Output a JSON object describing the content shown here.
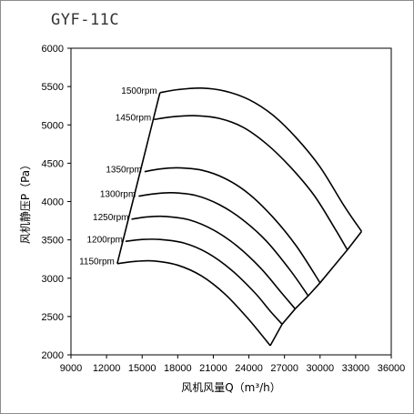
{
  "chart_data": {
    "type": "line",
    "title": "GYF-11C",
    "xlabel": "风机风量Q（m³/h）",
    "ylabel": "风机静压P（Pa）",
    "xlim": [
      9000,
      36000
    ],
    "ylim": [
      2000,
      6000
    ],
    "x_ticks": [
      "9000",
      "12000",
      "15000",
      "18000",
      "21000",
      "24000",
      "27000",
      "30000",
      "33000",
      "36000"
    ],
    "y_ticks": [
      "2000",
      "2500",
      "3000",
      "3500",
      "4000",
      "4500",
      "5000",
      "5500",
      "6000"
    ],
    "grid": false,
    "series": [
      {
        "name": "1500rpm",
        "x": [
          16500,
          18000,
          20000,
          22000,
          24000,
          26000,
          28000,
          30000,
          32000,
          33500
        ],
        "y": [
          5420,
          5460,
          5480,
          5440,
          5330,
          5130,
          4830,
          4450,
          3950,
          3610
        ]
      },
      {
        "name": "1450rpm",
        "x": [
          16000,
          17500,
          19500,
          21500,
          23500,
          25500,
          27500,
          29500,
          31200,
          32300
        ],
        "y": [
          5070,
          5105,
          5120,
          5085,
          4970,
          4750,
          4450,
          4080,
          3660,
          3370
        ]
      },
      {
        "name": "1350rpm",
        "x": [
          15200,
          16500,
          18000,
          20000,
          22000,
          24000,
          26000,
          28000,
          30000
        ],
        "y": [
          4390,
          4425,
          4440,
          4410,
          4300,
          4100,
          3800,
          3420,
          2940
        ]
      },
      {
        "name": "1300rpm",
        "x": [
          14700,
          16000,
          17500,
          19500,
          21500,
          23500,
          25500,
          27500,
          29000
        ],
        "y": [
          4070,
          4100,
          4115,
          4080,
          3960,
          3760,
          3480,
          3100,
          2770
        ]
      },
      {
        "name": "1250rpm",
        "x": [
          14100,
          15500,
          17000,
          19000,
          21000,
          23000,
          25000,
          26800,
          27900
        ],
        "y": [
          3770,
          3800,
          3805,
          3760,
          3630,
          3420,
          3130,
          2800,
          2600
        ]
      },
      {
        "name": "1200rpm",
        "x": [
          13600,
          15000,
          16500,
          18500,
          20500,
          22500,
          24500,
          25800,
          26800
        ],
        "y": [
          3480,
          3505,
          3505,
          3460,
          3330,
          3110,
          2810,
          2570,
          2400
        ]
      },
      {
        "name": "1150rpm",
        "x": [
          12900,
          14500,
          16000,
          18000,
          20000,
          22000,
          24000,
          25800
        ],
        "y": [
          3190,
          3220,
          3225,
          3170,
          3030,
          2790,
          2460,
          2120
        ]
      }
    ],
    "boundary_left": {
      "x": [
        12900,
        16500
      ],
      "y": [
        3190,
        5420
      ]
    },
    "boundary_right": {
      "x": [
        25800,
        26800,
        27900,
        29000,
        30000,
        32300,
        33500
      ],
      "y": [
        2120,
        2400,
        2600,
        2770,
        2940,
        3370,
        3610
      ]
    }
  }
}
